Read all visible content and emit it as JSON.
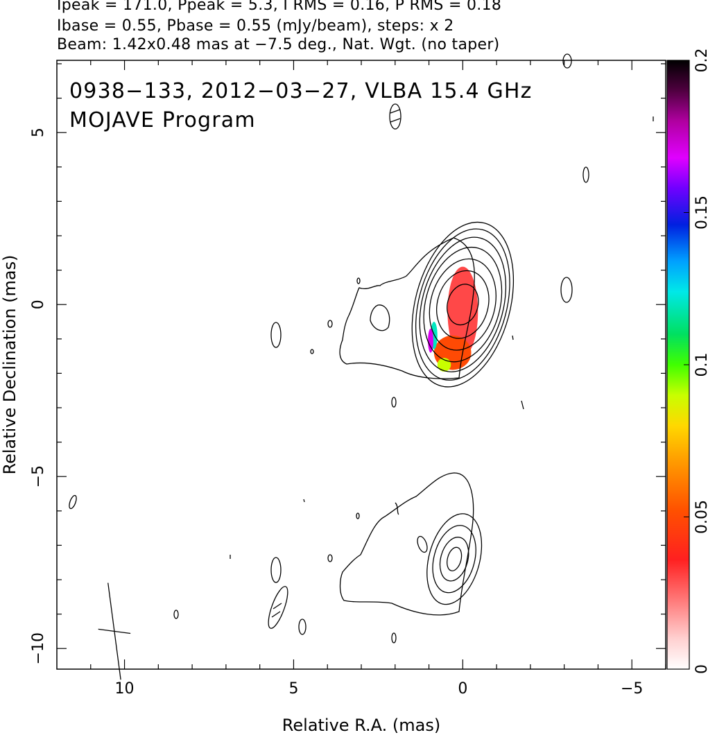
{
  "header": {
    "line1": "Ipeak = 171.0, Ppeak = 5.3, I RMS = 0.16, P RMS = 0.18",
    "line2": "Ibase = 0.55, Pbase = 0.55 (mJy/beam), steps: x 2",
    "line3": "Beam: 1.42x0.48 mas at −7.5 deg., Nat. Wgt. (no taper)"
  },
  "plot_title": {
    "line1": "0938−133, 2012−03−27, VLBA 15.4 GHz",
    "line2": "MOJAVE Program"
  },
  "chart_data": {
    "type": "contour",
    "xlabel": "Relative R.A. (mas)",
    "ylabel": "Relative Declination (mas)",
    "xlim": [
      12.0,
      -6.0
    ],
    "ylim": [
      -10.6,
      7.1
    ],
    "x_ticks": [
      10,
      5,
      0,
      -5
    ],
    "x_tick_labels": [
      "10",
      "5",
      "0",
      "−5"
    ],
    "y_ticks": [
      5,
      0,
      -5,
      -10
    ],
    "y_tick_labels": [
      "5",
      "0",
      "−5",
      "−10"
    ],
    "colorbar": {
      "range": [
        0,
        0.2
      ],
      "ticks": [
        0,
        0.05,
        0.1,
        0.15,
        0.2
      ],
      "tick_labels": [
        "0",
        "0.05",
        "0.1",
        "0.15",
        "0.2"
      ]
    },
    "upper_source": {
      "center": [
        0.0,
        0.0
      ],
      "contours": [
        {
          "dx": 0.45,
          "dy": 0.6,
          "angle": 15
        },
        {
          "dx": 0.75,
          "dy": 1.0,
          "angle": 15
        },
        {
          "dx": 0.95,
          "dy": 1.35,
          "angle": 15
        },
        {
          "dx": 1.1,
          "dy": 1.7,
          "angle": 15
        },
        {
          "dx": 1.2,
          "dy": 2.0,
          "angle": 15
        },
        {
          "dx": 1.3,
          "dy": 2.25,
          "angle": 15
        },
        {
          "dx": 1.4,
          "dy": 2.45,
          "angle": 15
        }
      ],
      "polarization_fraction": [
        {
          "x": 0.0,
          "y": -0.2,
          "rx": 0.45,
          "ry": 1.3,
          "value": 0.03
        },
        {
          "x": 0.3,
          "y": -1.4,
          "rx": 0.55,
          "ry": 0.5,
          "value": 0.05
        },
        {
          "x": 0.55,
          "y": -1.75,
          "rx": 0.2,
          "ry": 0.2,
          "value": 0.09
        },
        {
          "x": 0.85,
          "y": -0.9,
          "rx": 0.1,
          "ry": 0.4,
          "value": 0.12
        },
        {
          "x": 0.95,
          "y": -1.05,
          "rx": 0.08,
          "ry": 0.35,
          "value": 0.17
        }
      ]
    },
    "lower_source": {
      "center": [
        0.25,
        -7.4
      ],
      "contours": [
        {
          "dx": 0.2,
          "dy": 0.35,
          "angle": 15
        },
        {
          "dx": 0.4,
          "dy": 0.65,
          "angle": 15
        },
        {
          "dx": 0.6,
          "dy": 1.0,
          "angle": 15
        },
        {
          "dx": 0.75,
          "dy": 1.35,
          "angle": 15
        }
      ]
    },
    "beam": {
      "x": 10.3,
      "y": -9.5,
      "major": 1.42,
      "minor": 0.48,
      "pa": -7.5
    }
  }
}
